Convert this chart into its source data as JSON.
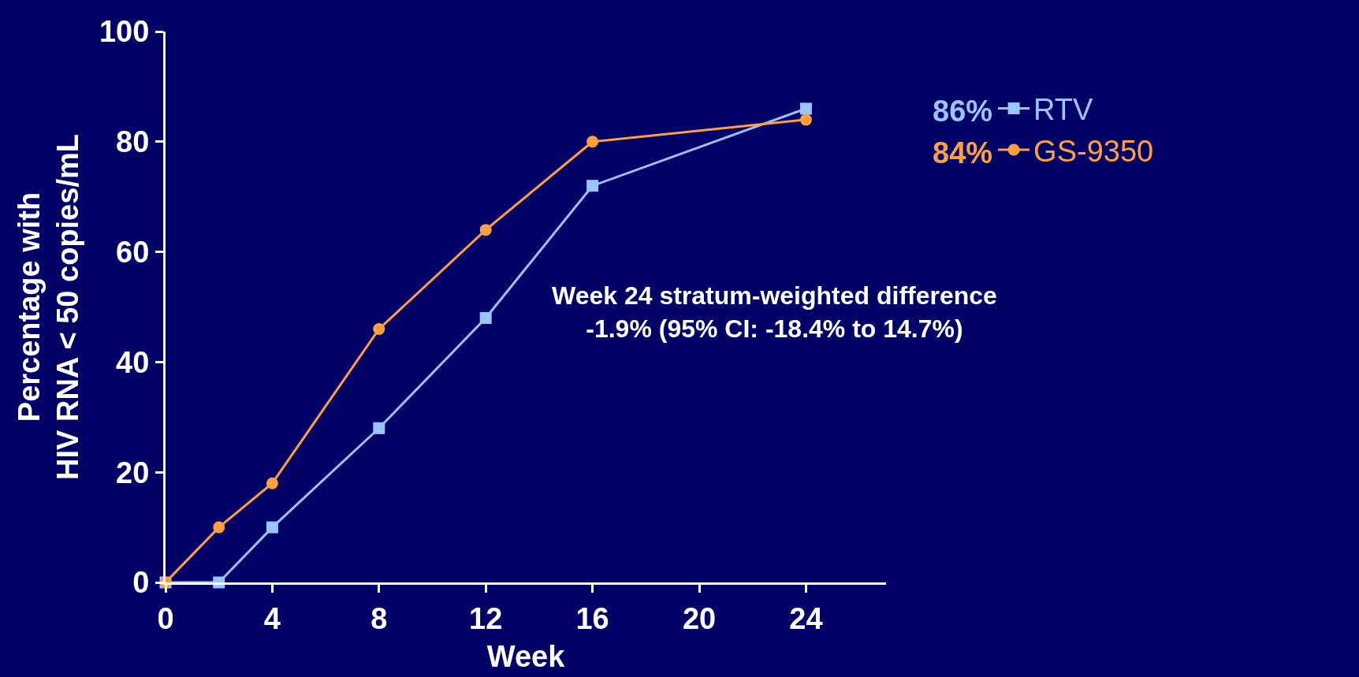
{
  "chart_data": {
    "type": "line",
    "xlabel": "Week",
    "ylabel": "Percentage with\nHIV RNA < 50 copies/mL",
    "x": [
      0,
      2,
      4,
      8,
      12,
      16,
      24
    ],
    "series": [
      {
        "name": "RTV",
        "color": "#99c4ff",
        "marker": "square",
        "values": [
          0,
          0,
          10,
          28,
          48,
          72,
          86
        ]
      },
      {
        "name": "GS-9350",
        "color": "#ffa040",
        "marker": "circle",
        "values": [
          0,
          10,
          18,
          46,
          64,
          80,
          84
        ]
      }
    ],
    "xlim": [
      0,
      27
    ],
    "xticks": [
      0,
      4,
      8,
      12,
      16,
      20,
      24
    ],
    "ylim": [
      0,
      100
    ],
    "yticks": [
      0,
      20,
      40,
      60,
      80,
      100
    ],
    "grid": false,
    "legend": "top right",
    "line_style": "solid",
    "annotations": [
      "86%",
      "84%",
      "Week 24 stratum-weighted difference\n-1.9% (95% CI: -18.4% to 14.7%)"
    ]
  }
}
